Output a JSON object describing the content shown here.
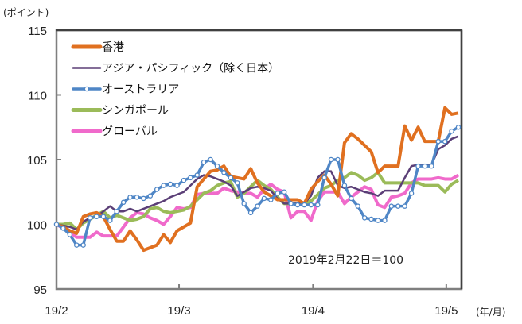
{
  "chart_data": {
    "type": "line",
    "title": "",
    "ylabel": "(ポイント)",
    "xlabel": "(年/月)",
    "ylim": [
      95,
      115
    ],
    "yticks": [
      95,
      100,
      105,
      110,
      115
    ],
    "ytick_labels": [
      "95",
      "100",
      "105",
      "110",
      "115"
    ],
    "xtick_labels": [
      "19/2",
      "19/3",
      "19/4",
      "19/5"
    ],
    "xtick_positions": [
      0,
      18.3,
      38.3,
      58.2
    ],
    "xlim": [
      0,
      60
    ],
    "grid": false,
    "legend_position": "top-left",
    "annotation": "2019年2月22日＝100",
    "x": [
      0,
      1,
      2,
      3,
      4,
      5,
      6,
      7,
      8,
      9,
      10,
      11,
      12,
      13,
      14,
      15,
      16,
      17,
      18,
      19,
      20,
      21,
      22,
      23,
      24,
      25,
      26,
      27,
      28,
      29,
      30,
      31,
      32,
      33,
      34,
      35,
      36,
      37,
      38,
      39,
      40,
      41,
      42,
      43,
      44,
      45,
      46,
      47,
      48,
      49,
      50,
      51,
      52,
      53,
      54,
      55,
      56,
      57,
      58,
      59,
      60
    ],
    "series": [
      {
        "name": "香港",
        "color": "#E07020",
        "markers": false,
        "values": [
          100,
          99.8,
          99.5,
          99.3,
          100.6,
          100.8,
          100.9,
          100.6,
          99.6,
          98.7,
          98.7,
          99.5,
          98.8,
          98.0,
          98.2,
          98.4,
          99.2,
          98.6,
          99.5,
          99.8,
          100.1,
          102.9,
          103.5,
          104.1,
          104.2,
          104.5,
          103.7,
          103.6,
          103.5,
          104.3,
          103.2,
          102.5,
          102.2,
          101.9,
          101.9,
          101.9,
          101.9,
          101.6,
          102.7,
          103.3,
          103.8,
          103.1,
          102.2,
          106.3,
          107.0,
          106.6,
          106.1,
          105.6,
          104.0,
          104.5,
          104.5,
          104.5,
          107.6,
          106.5,
          107.5,
          106.4,
          106.4,
          106.4,
          109.0,
          108.5,
          108.6
        ]
      },
      {
        "name": "アジア・パシフィック（除く日本）",
        "color": "#5B3F77",
        "markers": false,
        "values": [
          100,
          99.9,
          99.8,
          99.6,
          100.2,
          100.5,
          100.6,
          101.0,
          101.4,
          101.0,
          101.0,
          101.2,
          101.0,
          101.2,
          101.4,
          101.6,
          101.8,
          102.1,
          102.3,
          102.5,
          103.0,
          103.5,
          103.8,
          103.7,
          103.5,
          103.3,
          103.0,
          102.2,
          102.5,
          102.8,
          102.9,
          102.8,
          102.6,
          102.0,
          101.6,
          101.6,
          101.6,
          101.6,
          102.2,
          103.6,
          104.1,
          104.1,
          103.0,
          102.8,
          102.9,
          102.7,
          102.5,
          102.4,
          102.2,
          102.6,
          102.6,
          102.6,
          103.6,
          104.5,
          104.6,
          104.6,
          104.6,
          105.8,
          106.1,
          106.6,
          106.8
        ]
      },
      {
        "name": "オーストラリア",
        "color": "#4F86C6",
        "markers": true,
        "values": [
          100,
          99.7,
          99.2,
          98.4,
          98.4,
          100.5,
          100.6,
          100.6,
          100.3,
          101.0,
          101.7,
          102.1,
          102.1,
          102.0,
          102.2,
          102.7,
          103.0,
          103.1,
          103.0,
          103.4,
          103.6,
          103.8,
          104.8,
          105.0,
          104.5,
          104.0,
          103.6,
          103.2,
          101.6,
          100.9,
          101.4,
          102.0,
          101.9,
          102.4,
          102.5,
          101.6,
          101.5,
          101.5,
          101.5,
          101.5,
          103.6,
          105.0,
          105.0,
          103.0,
          102.0,
          101.4,
          100.5,
          100.4,
          100.3,
          100.3,
          101.4,
          101.4,
          101.4,
          102.4,
          104.5,
          104.5,
          104.5,
          106.4,
          106.4,
          107.2,
          107.5
        ]
      },
      {
        "name": "シンガポール",
        "color": "#9BBB59",
        "markers": false,
        "values": [
          100,
          100.0,
          100.1,
          99.6,
          100.1,
          100.4,
          100.7,
          101.0,
          100.5,
          100.7,
          100.5,
          100.3,
          100.4,
          100.6,
          101.2,
          101.3,
          101.0,
          100.9,
          101.0,
          101.1,
          101.4,
          101.9,
          102.4,
          102.6,
          103.0,
          103.2,
          103.3,
          102.1,
          102.4,
          102.9,
          103.4,
          103.0,
          102.7,
          102.1,
          101.6,
          101.6,
          101.6,
          101.6,
          101.8,
          102.3,
          102.8,
          103.0,
          103.4,
          103.6,
          104.0,
          103.8,
          103.4,
          103.6,
          104.0,
          103.2,
          103.2,
          103.2,
          103.2,
          103.2,
          103.2,
          103.0,
          103.0,
          103.0,
          102.5,
          103.1,
          103.4
        ]
      },
      {
        "name": "グローバル",
        "color": "#F06ACB",
        "markers": false,
        "values": [
          100,
          99.7,
          99.4,
          99.0,
          99.0,
          99.0,
          99.4,
          99.1,
          99.1,
          99.1,
          99.8,
          100.5,
          100.9,
          100.8,
          100.5,
          100.3,
          100.0,
          100.6,
          101.3,
          101.2,
          101.3,
          102.3,
          102.4,
          102.4,
          102.4,
          102.8,
          102.6,
          102.5,
          102.4,
          102.4,
          102.1,
          102.7,
          103.1,
          102.7,
          102.5,
          100.5,
          101.0,
          101.0,
          100.3,
          101.8,
          102.5,
          102.5,
          102.5,
          101.6,
          102.1,
          102.5,
          102.9,
          102.7,
          101.5,
          101.3,
          102.1,
          102.2,
          102.4,
          103.2,
          103.5,
          103.5,
          103.5,
          103.6,
          103.5,
          103.5,
          103.8
        ]
      }
    ]
  }
}
